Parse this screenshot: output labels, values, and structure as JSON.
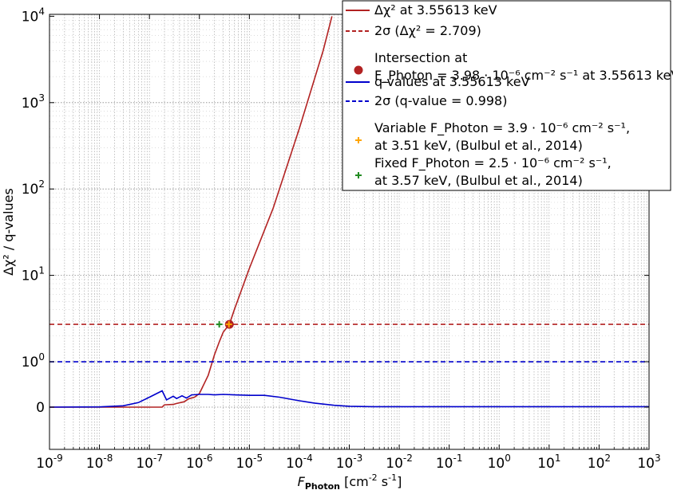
{
  "chart_data": {
    "type": "line",
    "title": "",
    "xlabel": "F_Photon [cm^-2 s^-1]",
    "ylabel": "Δχ² / q-values",
    "x_scale": "log",
    "y_scale": "symlog",
    "xlim": [
      1e-09,
      1000
    ],
    "ylim": [
      -0.5,
      10000
    ],
    "x_tick_labels": [
      "10-9",
      "10-8",
      "10-7",
      "10-6",
      "10-5",
      "10-4",
      "10-3",
      "10-2",
      "10-1",
      "100",
      "101",
      "102",
      "103"
    ],
    "y_tick_labels": [
      "0",
      "100",
      "101",
      "102",
      "103",
      "104"
    ],
    "grid": true,
    "legend_position": "top-right",
    "series": [
      {
        "name": "Δχ² at 3.55613 keV",
        "color": "#b22222",
        "style": "solid",
        "x": [
          1e-09,
          1e-08,
          1e-07,
          1.8e-07,
          2e-07,
          3e-07,
          3.5e-07,
          5e-07,
          6e-07,
          8e-07,
          1e-06,
          1.5e-06,
          2e-06,
          2.5e-06,
          3e-06,
          3.98e-06,
          5e-06,
          1e-05,
          3e-05,
          0.0001,
          0.0003,
          0.00045
        ],
        "y": [
          0,
          0,
          0,
          0,
          0.05,
          0.06,
          0.08,
          0.12,
          0.18,
          0.22,
          0.3,
          0.7,
          1.2,
          1.7,
          2.2,
          2.709,
          4,
          12,
          60,
          500,
          4000,
          10000
        ]
      },
      {
        "name": "2σ (Δχ² = 2.709)",
        "color": "#b22222",
        "style": "dashed",
        "x": [
          1e-09,
          1000
        ],
        "y": [
          2.709,
          2.709
        ]
      },
      {
        "name": "q-values at 3.55613 keV",
        "color": "#0000cc",
        "style": "solid",
        "x": [
          1e-09,
          1e-08,
          3e-08,
          6e-08,
          1e-07,
          1.8e-07,
          2.2e-07,
          3e-07,
          3.5e-07,
          4.5e-07,
          5.5e-07,
          7e-07,
          1e-06,
          1.5e-06,
          2e-06,
          3e-06,
          5e-06,
          1e-05,
          2e-05,
          4e-05,
          0.0001,
          0.0002,
          0.0005,
          0.001,
          0.003,
          0.01,
          0.1,
          1,
          10,
          1000
        ],
        "y": [
          0,
          0.005,
          0.03,
          0.1,
          0.22,
          0.36,
          0.16,
          0.24,
          0.19,
          0.25,
          0.2,
          0.27,
          0.28,
          0.28,
          0.27,
          0.28,
          0.27,
          0.26,
          0.26,
          0.22,
          0.14,
          0.09,
          0.04,
          0.02,
          0.01,
          0.01,
          0.01,
          0.01,
          0.01,
          0.01
        ]
      },
      {
        "name": "2σ (q-value = 0.998)",
        "color": "#0000cc",
        "style": "dashed",
        "x": [
          1e-09,
          1000
        ],
        "y": [
          0.998,
          0.998
        ]
      }
    ],
    "markers": [
      {
        "name": "Intersection at F_Photon = 3.98·10^-6 cm^-2 s^-1 at 3.55613 keV",
        "marker": "circle",
        "color": "#b22222",
        "x": 3.98e-06,
        "y": 2.709
      },
      {
        "name": "Variable F_Photon = 3.9·10^-6 cm^-2 s^-1, at 3.51 keV, (Bulbul et al., 2014)",
        "marker": "plus",
        "color": "#ffa500",
        "x": 3.9e-06,
        "y": 2.709
      },
      {
        "name": "Fixed F_Photon = 2.5·10^-6 cm^-2 s^-1, at 3.57 keV, (Bulbul et al., 2014)",
        "marker": "plus",
        "color": "#228b22",
        "x": 2.5e-06,
        "y": 2.709
      }
    ],
    "legend": [
      {
        "kind": "line",
        "style": "solid",
        "color": "#b22222",
        "lines": [
          "Δχ² at 3.55613 keV"
        ]
      },
      {
        "kind": "line",
        "style": "dashed",
        "color": "#b22222",
        "lines": [
          "2σ (Δχ² = 2.709)"
        ]
      },
      {
        "kind": "circle",
        "color": "#b22222",
        "lines": [
          "Intersection at",
          "F_Photon = 3.98 · 10⁻⁶ cm⁻² s⁻¹ at 3.55613 keV"
        ]
      },
      {
        "kind": "line",
        "style": "solid",
        "color": "#0000cc",
        "lines": [
          "q-values at 3.55613 keV"
        ]
      },
      {
        "kind": "line",
        "style": "dashed",
        "color": "#0000cc",
        "lines": [
          "2σ (q-value = 0.998)"
        ]
      },
      {
        "kind": "plus",
        "color": "#ffa500",
        "lines": [
          "Variable F_Photon = 3.9 · 10⁻⁶ cm⁻² s⁻¹,",
          "at 3.51 keV, (Bulbul et al., 2014)"
        ]
      },
      {
        "kind": "plus",
        "color": "#228b22",
        "lines": [
          "Fixed F_Photon = 2.5 · 10⁻⁶ cm⁻² s⁻¹,",
          "at 3.57 keV, (Bulbul et al., 2014)"
        ]
      }
    ]
  }
}
